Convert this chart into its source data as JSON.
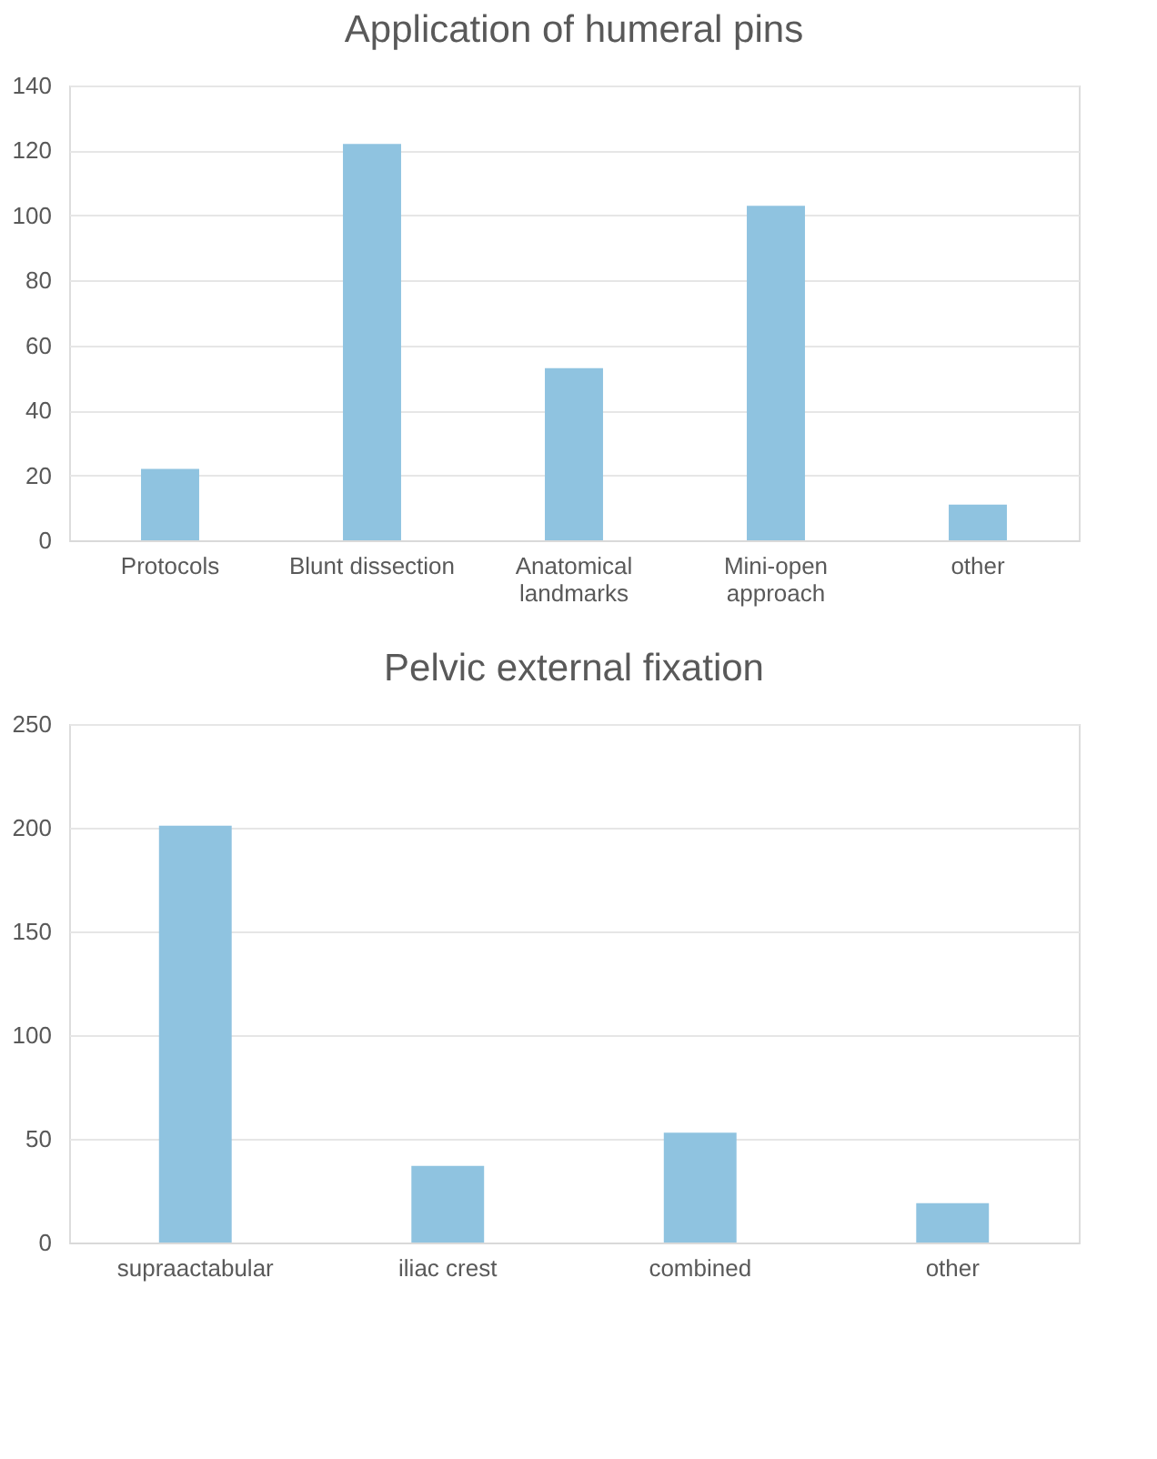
{
  "chart_data": [
    {
      "type": "bar",
      "title": "Application of humeral pins",
      "categories": [
        "Protocols",
        "Blunt dissection",
        "Anatomical landmarks",
        "Mini-open approach",
        "other"
      ],
      "values": [
        22,
        122,
        53,
        103,
        11
      ],
      "color": "#8fc3e0",
      "ylim": [
        0,
        140
      ],
      "yticks": [
        0,
        20,
        40,
        60,
        80,
        100,
        120,
        140
      ],
      "grid": "y"
    },
    {
      "type": "bar",
      "title": "Pelvic external fixation",
      "categories": [
        "supraactabular",
        "iliac crest",
        "combined",
        "other"
      ],
      "values": [
        201,
        37,
        53,
        19
      ],
      "color": "#8fc3e0",
      "ylim": [
        0,
        250
      ],
      "yticks": [
        0,
        50,
        100,
        150,
        200,
        250
      ],
      "grid": "y"
    }
  ]
}
